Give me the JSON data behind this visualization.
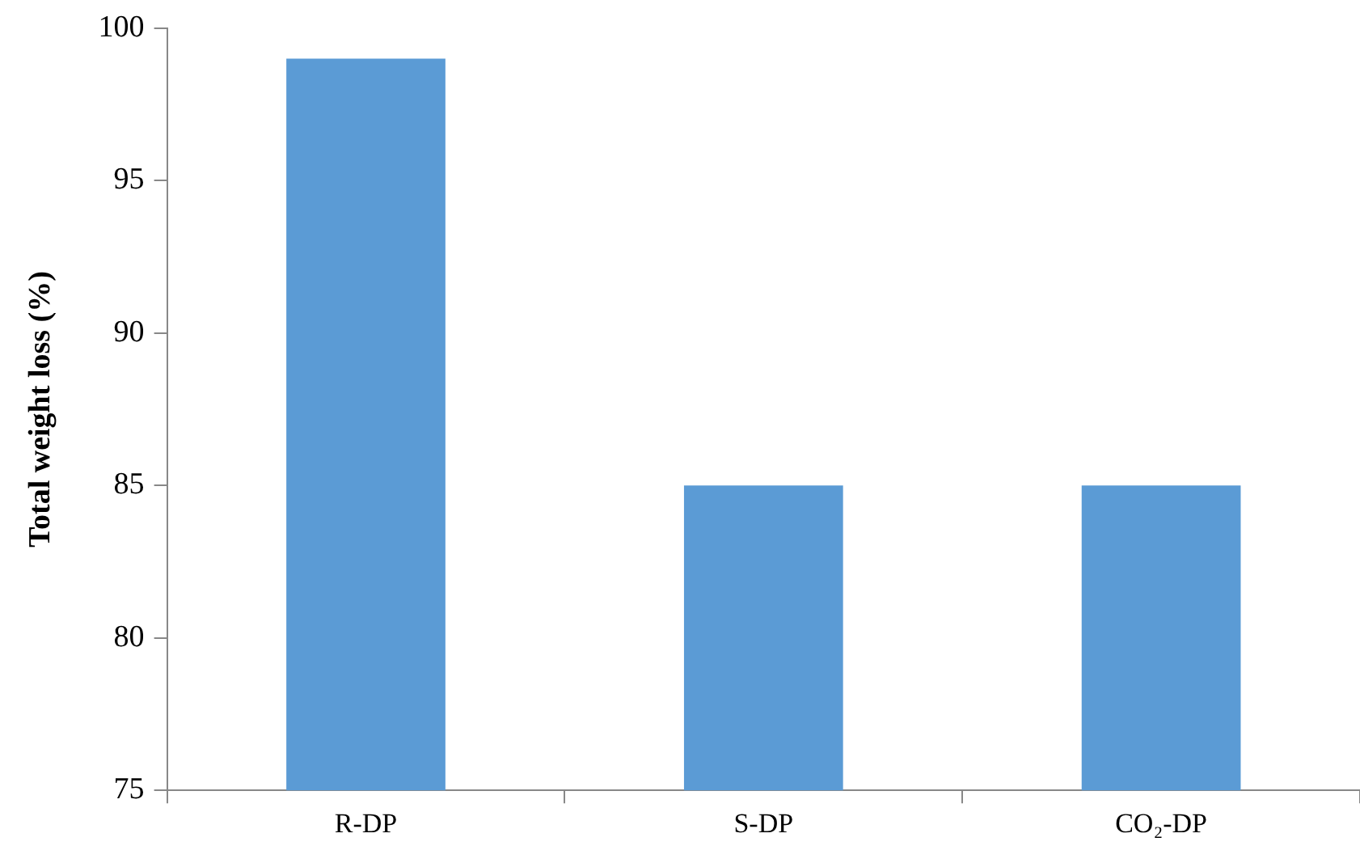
{
  "chart_data": {
    "type": "bar",
    "ylabel": "Total weight loss (%)",
    "categories": [
      "R-DP",
      "S-DP",
      "CO₂-DP"
    ],
    "values": [
      99,
      85,
      85
    ],
    "color": "#5b9bd5",
    "ylim": [
      75,
      100
    ],
    "yticks": [
      75,
      80,
      85,
      90,
      95,
      100
    ],
    "grid": false,
    "legend": false
  }
}
